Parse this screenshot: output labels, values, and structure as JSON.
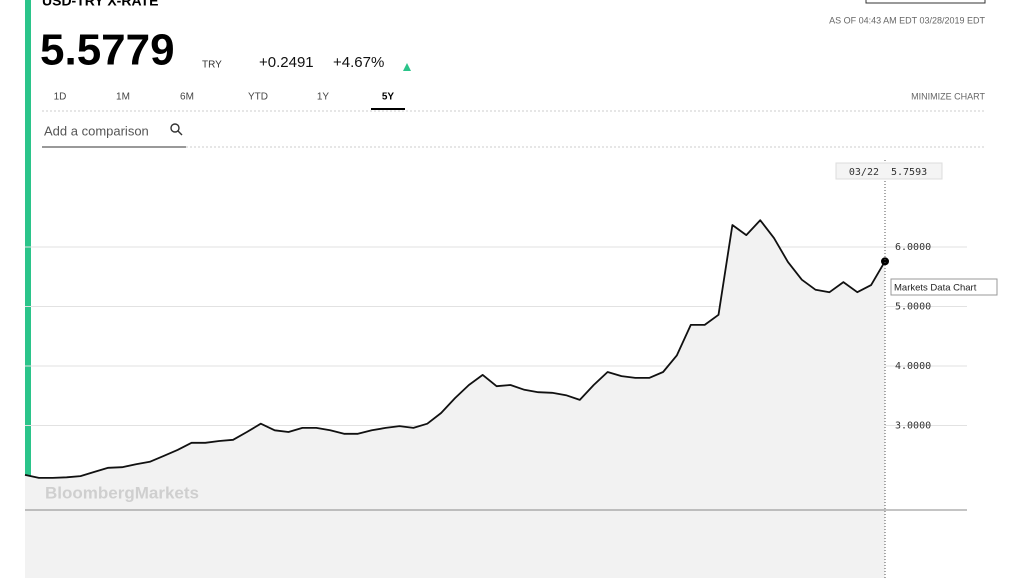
{
  "header": {
    "title": "USD-TRY X-RATE",
    "price": "5.5779",
    "currency": "TRY",
    "change": "+0.2491",
    "change_pct": "+4.67%",
    "as_of": "AS OF 04:43 AM EDT 03/28/2019 EDT"
  },
  "tabs": [
    "1D",
    "1M",
    "6M",
    "YTD",
    "1Y",
    "5Y"
  ],
  "minimize": "MINIMIZE CHART",
  "comparison": "Add a comparison",
  "watermark": "BloombergMarkets",
  "tooltip": {
    "date": "03/22",
    "label": "Markets Data Chart"
  },
  "chart_data": {
    "type": "line",
    "color": "#111111",
    "values": [
      2.17,
      2.12,
      2.12,
      2.13,
      2.15,
      2.22,
      2.29,
      2.3,
      2.35,
      2.39,
      2.49,
      2.59,
      2.71,
      2.71,
      2.74,
      2.76,
      2.89,
      3.03,
      2.92,
      2.89,
      2.96,
      2.96,
      2.92,
      2.86,
      2.86,
      2.92,
      2.96,
      2.99,
      2.96,
      3.03,
      3.21,
      3.46,
      3.68,
      3.85,
      3.66,
      3.68,
      3.6,
      3.56,
      3.55,
      3.51,
      3.43,
      3.68,
      3.9,
      3.83,
      3.8,
      3.8,
      3.9,
      4.18,
      4.69,
      4.69,
      4.86,
      6.37,
      6.2,
      6.45,
      6.15,
      5.75,
      5.45,
      5.28,
      5.24,
      5.41,
      5.24,
      5.36,
      5.7593
    ],
    "ylim": [
      1.58,
      7.63
    ],
    "yticks": [
      {
        "value": 3,
        "label": "3.0000"
      },
      {
        "value": 4,
        "label": "4.0000"
      },
      {
        "value": 5,
        "label": "5.0000"
      },
      {
        "value": 6,
        "label": "6.0000"
      }
    ],
    "grid": true
  }
}
